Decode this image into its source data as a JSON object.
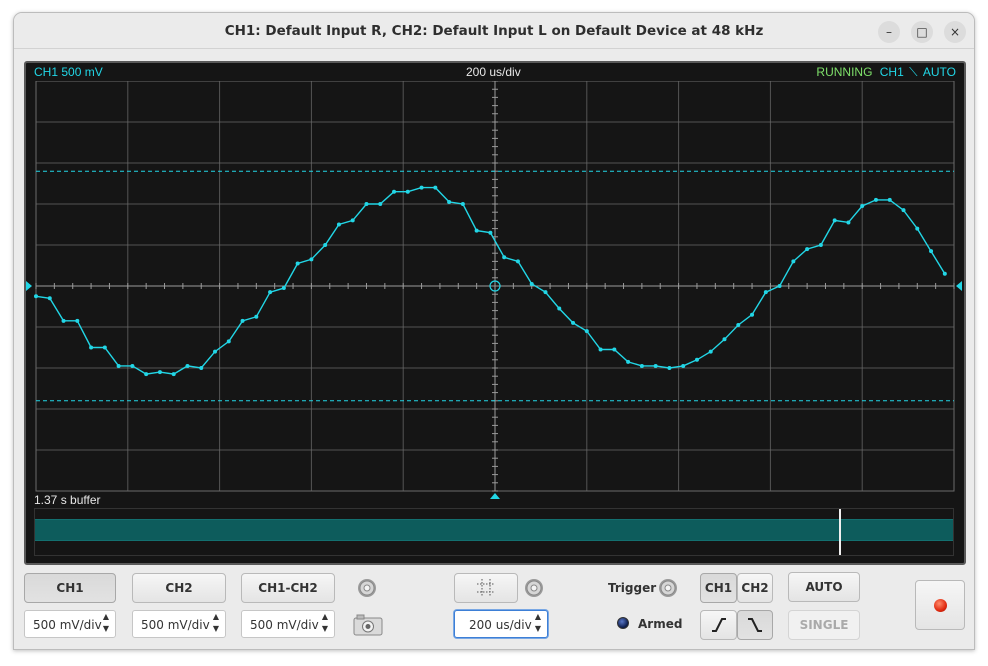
{
  "window": {
    "title": "CH1: Default Input R, CH2: Default Input L on Default Device at 48 kHz",
    "minimize_glyph": "–",
    "maximize_glyph": "□",
    "close_glyph": "×"
  },
  "scope": {
    "ch1_scale_label": "CH1 500 mV",
    "timebase_label": "200 us/div",
    "status_running": "RUNNING",
    "trigger_channel": "CH1",
    "trigger_slope_glyph": "⟍",
    "trigger_mode": "AUTO",
    "buffer_label": "1.37 s buffer",
    "colors": {
      "trace": "#22d6e6",
      "running": "#7ee06a",
      "grid": "#6a6a6a",
      "background": "#151515",
      "buffer": "#0d5c5c"
    }
  },
  "chart_data": {
    "type": "line",
    "title": "",
    "xlabel": "",
    "ylabel": "",
    "xlim": [
      -5,
      5
    ],
    "ylim": [
      -5,
      5
    ],
    "grid": true,
    "time_per_div": "200 us/div",
    "volts_per_div": "500 mV",
    "trigger_level_markers_div": [
      2.8,
      -2.8
    ],
    "series": [
      {
        "name": "CH1",
        "x": [
          -5.0,
          -4.85,
          -4.7,
          -4.55,
          -4.4,
          -4.25,
          -4.1,
          -3.95,
          -3.8,
          -3.65,
          -3.5,
          -3.35,
          -3.2,
          -3.05,
          -2.9,
          -2.75,
          -2.6,
          -2.45,
          -2.3,
          -2.15,
          -2.0,
          -1.85,
          -1.7,
          -1.55,
          -1.4,
          -1.25,
          -1.1,
          -0.95,
          -0.8,
          -0.65,
          -0.5,
          -0.35,
          -0.2,
          -0.05,
          0.1,
          0.25,
          0.4,
          0.55,
          0.7,
          0.85,
          1.0,
          1.15,
          1.3,
          1.45,
          1.6,
          1.75,
          1.9,
          2.05,
          2.2,
          2.35,
          2.5,
          2.65,
          2.8,
          2.95,
          3.1,
          3.25,
          3.4,
          3.55,
          3.7,
          3.85,
          4.0,
          4.15,
          4.3,
          4.45,
          4.6,
          4.75,
          4.9
        ],
        "y": [
          -0.25,
          -0.3,
          -0.85,
          -0.85,
          -1.5,
          -1.5,
          -1.95,
          -1.95,
          -2.15,
          -2.1,
          -2.15,
          -1.95,
          -2.0,
          -1.6,
          -1.35,
          -0.85,
          -0.75,
          -0.15,
          -0.05,
          0.55,
          0.65,
          1.0,
          1.5,
          1.6,
          2.0,
          2.0,
          2.3,
          2.3,
          2.4,
          2.4,
          2.05,
          2.0,
          1.35,
          1.3,
          0.7,
          0.6,
          0.05,
          -0.15,
          -0.55,
          -0.9,
          -1.1,
          -1.55,
          -1.55,
          -1.85,
          -1.95,
          -1.95,
          -2.0,
          -1.95,
          -1.8,
          -1.6,
          -1.3,
          -0.95,
          -0.7,
          -0.15,
          0.0,
          0.6,
          0.9,
          1.0,
          1.6,
          1.55,
          1.95,
          2.1,
          2.1,
          1.85,
          1.4,
          0.85,
          0.3
        ]
      }
    ]
  },
  "controls": {
    "ch1_label": "CH1",
    "ch2_label": "CH2",
    "ch1ch2_label": "CH1-CH2",
    "ch1_scale": "500 mV/div",
    "ch2_scale": "500 mV/div",
    "ch1ch2_scale": "500 mV/div",
    "timebase": "200 us/div",
    "spin_up": "▲",
    "spin_down": "▼",
    "trigger_label": "Trigger",
    "armed_label": "Armed",
    "trig_ch1": "CH1",
    "trig_ch2": "CH2",
    "auto_label": "AUTO",
    "single_label": "SINGLE"
  }
}
